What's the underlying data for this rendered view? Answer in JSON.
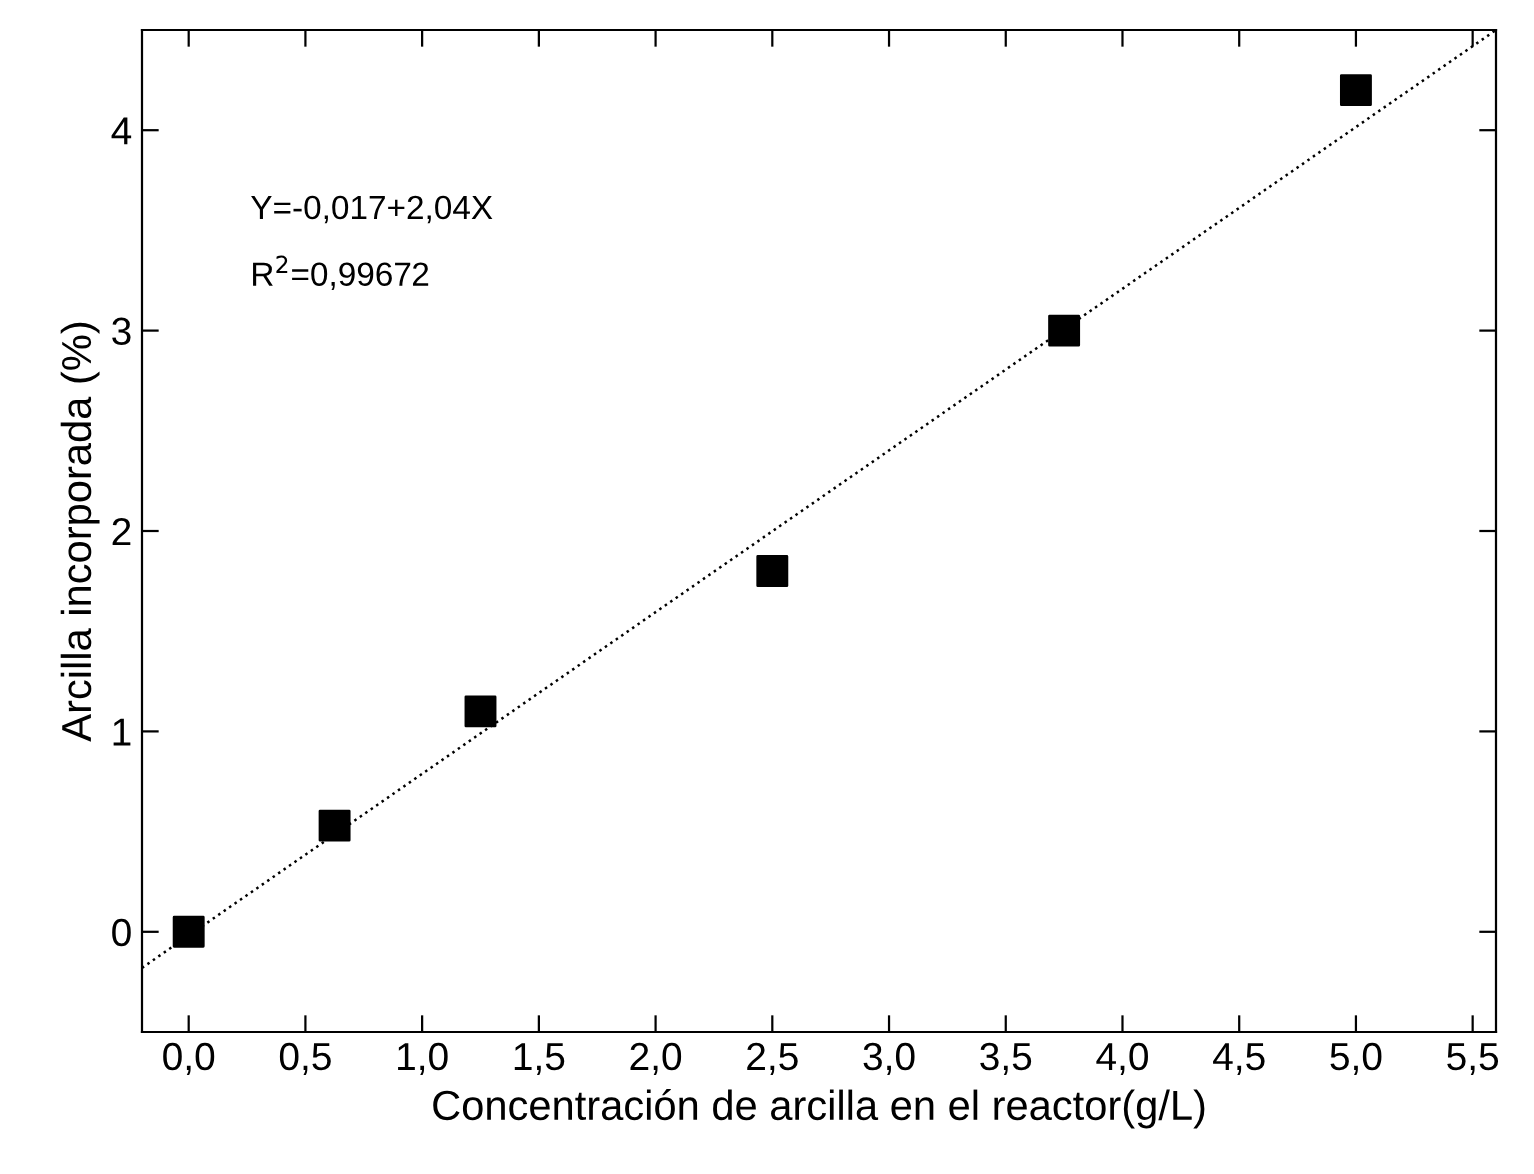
{
  "chart_data": {
    "type": "scatter",
    "xlabel": "Concentración de arcilla en el reactor(g/L)",
    "ylabel": "Arcilla incorporada (%)",
    "annotations": [
      "Y=-0,017+2,04X",
      "R$^{2}$=0,99672"
    ],
    "series": [
      {
        "x": [
          0,
          0.625,
          1.25,
          2.5,
          3.75,
          5.0
        ],
        "values": [
          0,
          0.53,
          1.1,
          1.8,
          3.0,
          4.2
        ],
        "color": "#000000",
        "marker": "square"
      },
      {
        "type": "line",
        "x": [
          -0.2,
          5.6
        ],
        "values": [
          -0.18,
          4.5
        ],
        "color": "#000000",
        "line_style": "dotted"
      }
    ],
    "xlim": [
      -0.2,
      5.6
    ],
    "ylim": [
      -0.5,
      4.5
    ],
    "xticks": [
      {
        "value": 0,
        "label": "0,0"
      },
      {
        "value": 0.5,
        "label": "0,5"
      },
      {
        "value": 1,
        "label": "1,0"
      },
      {
        "value": 1.5,
        "label": "1,5"
      },
      {
        "value": 2,
        "label": "2,0"
      },
      {
        "value": 2.5,
        "label": "2,5"
      },
      {
        "value": 3,
        "label": "3,0"
      },
      {
        "value": 3.5,
        "label": "3,5"
      },
      {
        "value": 4,
        "label": "4,0"
      },
      {
        "value": 4.5,
        "label": "4,5"
      },
      {
        "value": 5,
        "label": "5,0"
      },
      {
        "value": 5.5,
        "label": "5,5"
      }
    ],
    "yticks": [
      0,
      1,
      2,
      3,
      4
    ],
    "grid": false
  }
}
